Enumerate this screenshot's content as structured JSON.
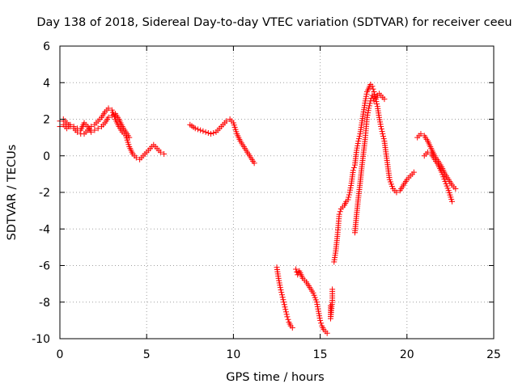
{
  "chart_data": {
    "type": "scatter",
    "title": "Day 138 of 2018, Sidereal Day-to-day VTEC variation (SDTVAR) for receiver ceeu",
    "xlabel": "GPS time / hours",
    "ylabel": "SDTVAR / TECUs",
    "xlim": [
      0,
      25
    ],
    "ylim": [
      -10,
      6
    ],
    "xticks": [
      0,
      5,
      10,
      15,
      20,
      25
    ],
    "yticks": [
      -10,
      -8,
      -6,
      -4,
      -2,
      0,
      2,
      4,
      6
    ],
    "grid": true,
    "marker": "+",
    "colors": {
      "series": "#ff0000",
      "grid": "#a0a0a0",
      "axis": "#000000"
    },
    "series": [
      {
        "name": "SDTVAR",
        "segments": [
          {
            "x": [
              0.0,
              0.2,
              0.4,
              0.6,
              0.8,
              1.0,
              1.2,
              1.4,
              1.6,
              1.8,
              2.0,
              2.2,
              2.4,
              2.6,
              2.8,
              3.0,
              3.2,
              3.4,
              3.6,
              3.8,
              4.0,
              4.2,
              4.4,
              4.6,
              4.8,
              5.0,
              5.2,
              5.4,
              5.6,
              5.8,
              6.0
            ],
            "y": [
              1.9,
              2.0,
              1.8,
              1.6,
              1.5,
              1.3,
              1.2,
              1.2,
              1.4,
              1.6,
              1.7,
              1.9,
              2.1,
              2.4,
              2.6,
              2.5,
              2.0,
              1.6,
              1.3,
              1.1,
              0.5,
              0.1,
              -0.1,
              -0.2,
              0.0,
              0.2,
              0.4,
              0.6,
              0.4,
              0.2,
              0.1
            ]
          },
          {
            "x": [
              0.0,
              0.2,
              0.4,
              0.6,
              0.8,
              1.0,
              1.2,
              1.4,
              1.6,
              1.8,
              2.0,
              2.2,
              2.4,
              2.6,
              2.8,
              3.0,
              3.2,
              3.4,
              3.6,
              3.8,
              4.0
            ],
            "y": [
              1.6,
              1.7,
              1.5,
              1.7,
              1.6,
              1.5,
              1.4,
              1.8,
              1.6,
              1.3,
              1.4,
              1.5,
              1.6,
              1.8,
              2.1,
              2.2,
              2.3,
              2.0,
              1.6,
              1.3,
              1.0
            ]
          },
          {
            "x": [
              7.5,
              7.8,
              8.1,
              8.4,
              8.7,
              9.0,
              9.3,
              9.6,
              9.8,
              10.0,
              10.2,
              10.4,
              10.6,
              10.8,
              11.0,
              11.2
            ],
            "y": [
              1.7,
              1.5,
              1.4,
              1.3,
              1.2,
              1.3,
              1.6,
              1.9,
              2.0,
              1.8,
              1.2,
              0.8,
              0.5,
              0.2,
              -0.1,
              -0.4
            ]
          },
          {
            "x": [
              12.5,
              12.6,
              12.7,
              12.8,
              12.9,
              13.0,
              13.1,
              13.2,
              13.3,
              13.4
            ],
            "y": [
              -6.1,
              -6.7,
              -7.2,
              -7.6,
              -8.0,
              -8.4,
              -8.8,
              -9.1,
              -9.3,
              -9.4
            ]
          },
          {
            "x": [
              13.6,
              13.7,
              13.8,
              13.9,
              14.0,
              14.2,
              14.4,
              14.6,
              14.8,
              14.9,
              15.0,
              15.1,
              15.2,
              15.3,
              15.4
            ],
            "y": [
              -6.2,
              -6.5,
              -6.3,
              -6.5,
              -6.7,
              -6.9,
              -7.2,
              -7.5,
              -8.0,
              -8.5,
              -9.0,
              -9.3,
              -9.5,
              -9.6,
              -9.7
            ]
          },
          {
            "x": [
              15.6,
              15.6,
              15.7,
              15.7
            ],
            "y": [
              -8.2,
              -8.9,
              -7.9,
              -7.3
            ]
          },
          {
            "x": [
              15.8,
              15.9,
              16.0,
              16.1,
              16.2,
              16.3,
              16.4,
              16.5,
              16.6,
              16.7,
              16.8,
              16.9,
              17.0,
              17.1,
              17.2,
              17.3,
              17.4,
              17.5,
              17.6,
              17.7,
              17.8,
              17.9,
              18.0,
              18.1,
              18.2,
              18.3,
              18.4,
              18.5,
              18.6,
              18.7,
              18.8,
              18.9,
              19.0,
              19.2,
              19.4,
              19.6,
              19.8,
              20.0,
              20.2,
              20.4
            ],
            "y": [
              -5.8,
              -5.2,
              -4.3,
              -3.2,
              -2.9,
              -2.8,
              -2.7,
              -2.5,
              -2.4,
              -2.0,
              -1.5,
              -0.8,
              -0.5,
              0.3,
              0.8,
              1.2,
              1.8,
              2.4,
              3.0,
              3.5,
              3.7,
              3.9,
              3.8,
              3.5,
              3.1,
              2.7,
              2.1,
              1.6,
              1.2,
              0.8,
              0.1,
              -0.6,
              -1.3,
              -1.8,
              -2.0,
              -1.9,
              -1.6,
              -1.3,
              -1.1,
              -0.9
            ]
          },
          {
            "x": [
              17.0,
              17.1,
              17.2,
              17.3,
              17.4,
              17.5,
              17.6,
              17.7,
              17.8,
              17.9,
              18.0,
              18.1,
              18.2,
              18.3,
              18.4,
              18.5,
              18.6,
              18.7
            ],
            "y": [
              -4.2,
              -3.2,
              -2.3,
              -1.5,
              -0.6,
              0.2,
              1.0,
              2.1,
              2.6,
              3.0,
              3.3,
              3.0,
              3.1,
              3.3,
              3.4,
              3.3,
              3.2,
              3.1
            ]
          },
          {
            "x": [
              20.6,
              20.8,
              21.0,
              21.2,
              21.4,
              21.6,
              21.8,
              22.0,
              22.2,
              22.4,
              22.6,
              22.8
            ],
            "y": [
              1.0,
              1.2,
              1.1,
              0.8,
              0.4,
              0.0,
              -0.3,
              -0.6,
              -1.0,
              -1.3,
              -1.6,
              -1.8
            ]
          },
          {
            "x": [
              21.0,
              21.2,
              21.4,
              21.6,
              21.8,
              22.0,
              22.2,
              22.4,
              22.6
            ],
            "y": [
              0.0,
              0.2,
              0.1,
              -0.2,
              -0.5,
              -0.9,
              -1.4,
              -1.9,
              -2.5
            ]
          }
        ]
      }
    ]
  }
}
